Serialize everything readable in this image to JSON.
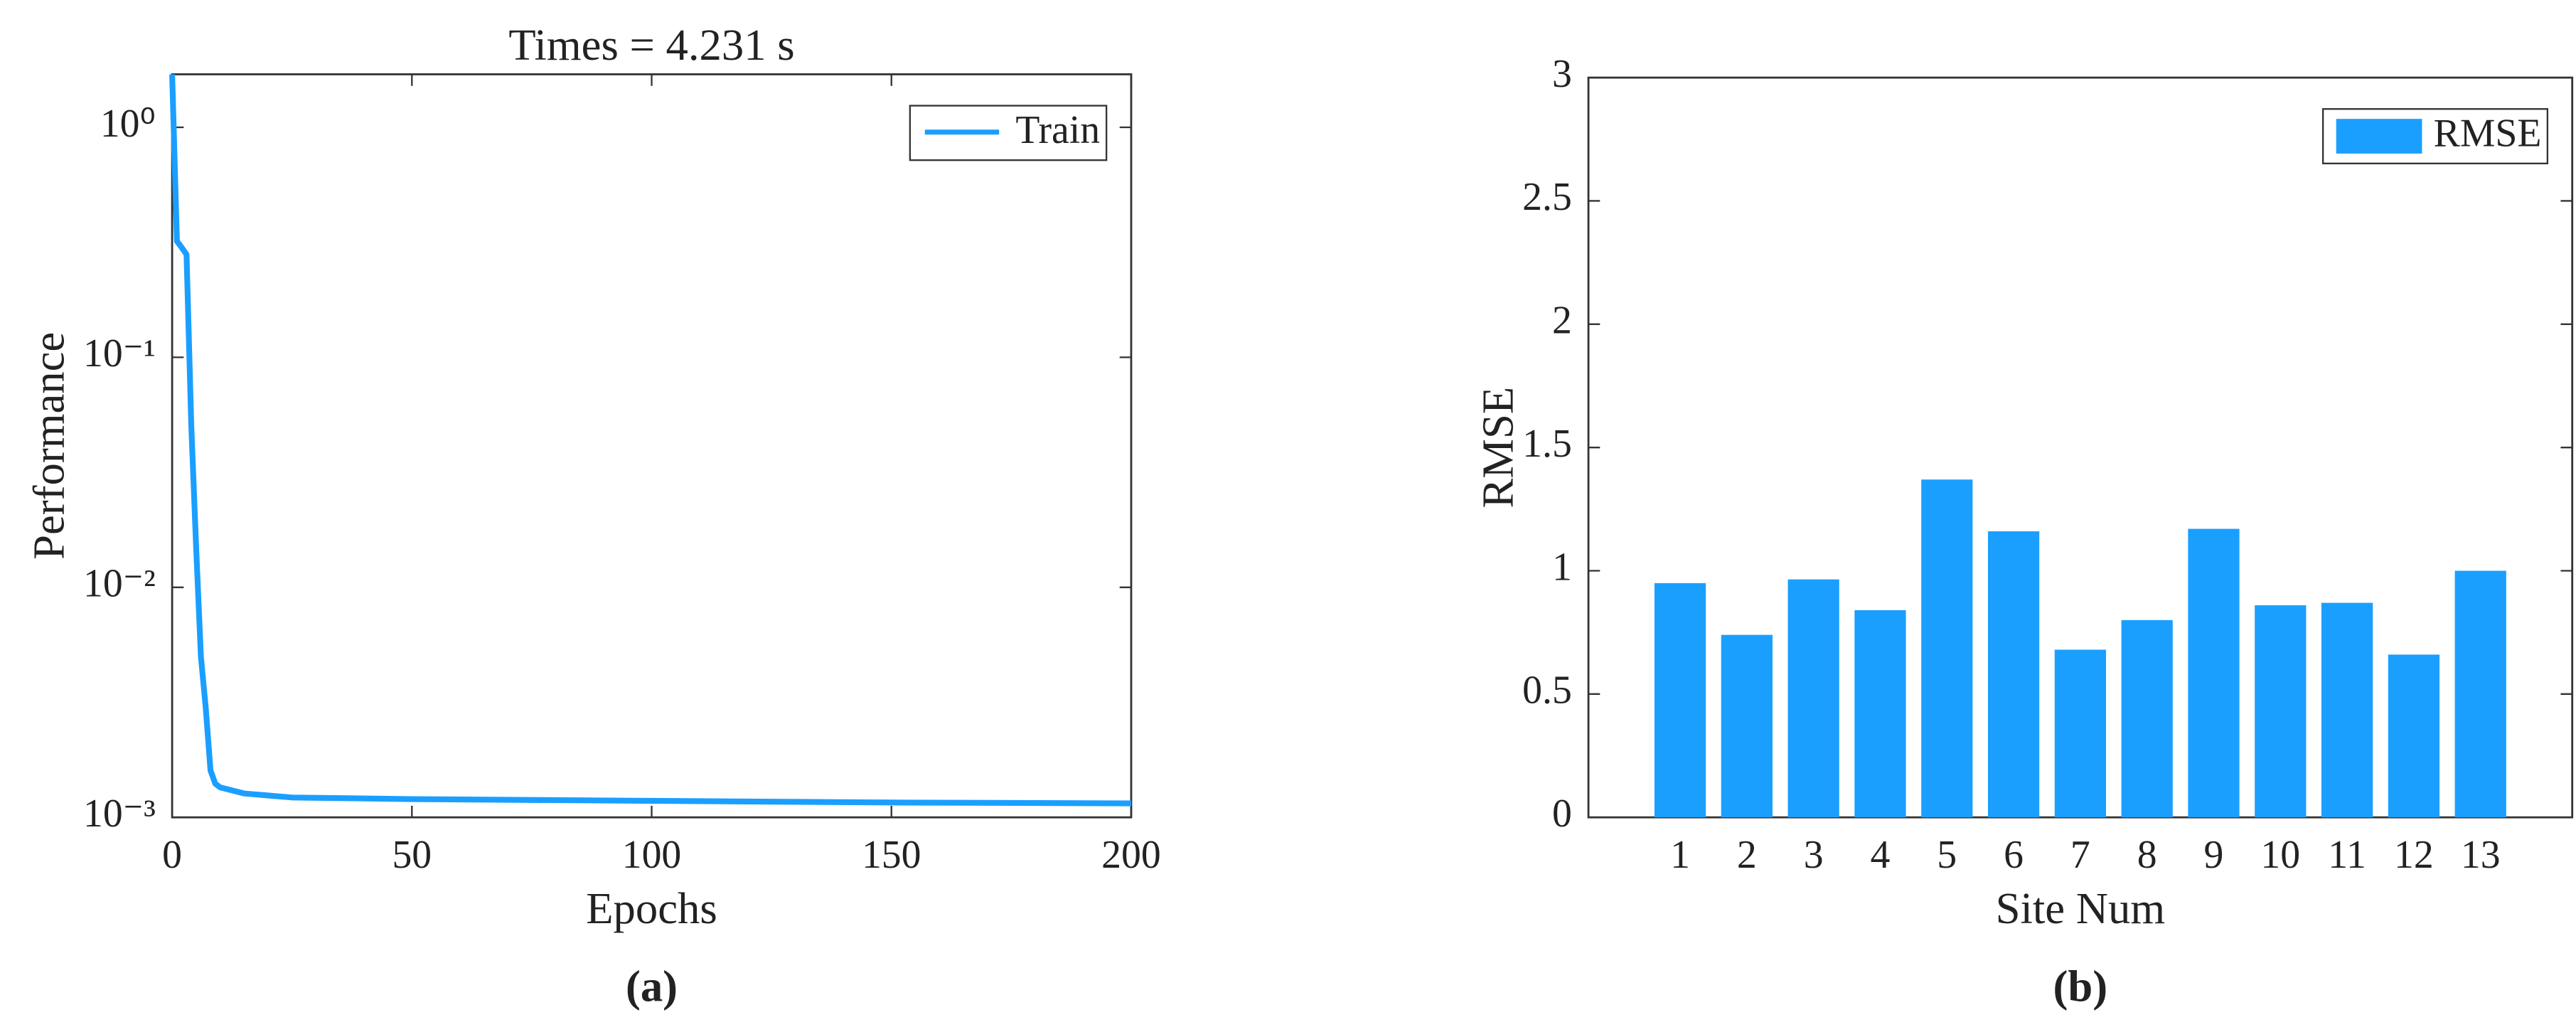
{
  "chart_data": [
    {
      "type": "line",
      "title": "Times = 4.231 s",
      "xlabel": "Epochs",
      "ylabel": "Performance",
      "caption": "(a)",
      "yscale": "log",
      "legend": "upper right",
      "grid": false,
      "x": [
        0,
        1,
        2,
        3,
        4,
        5,
        6,
        7,
        8,
        9,
        10,
        15,
        25,
        50,
        100,
        150,
        200
      ],
      "series": [
        {
          "name": "Train",
          "color": "#1a9fff",
          "values": [
            1.7,
            0.32,
            0.3,
            0.28,
            0.05,
            0.015,
            0.005,
            0.003,
            0.0016,
            0.0014,
            0.00135,
            0.00127,
            0.00122,
            0.0012,
            0.00118,
            0.00116,
            0.00115
          ]
        }
      ],
      "xlim": [
        0,
        200
      ],
      "xticks": [
        0,
        50,
        100,
        150,
        200
      ],
      "ylim": [
        0.001,
        1.7
      ],
      "yticks": [
        {
          "value": 0.001,
          "label": "10⁻³"
        },
        {
          "value": 0.01,
          "label": "10⁻²"
        },
        {
          "value": 0.1,
          "label": "10⁻¹"
        },
        {
          "value": 1,
          "label": "10⁰"
        }
      ]
    },
    {
      "type": "bar",
      "xlabel": "Site Num",
      "ylabel": "RMSE",
      "caption": "(b)",
      "legend": "upper right",
      "grid": false,
      "categories": [
        "1",
        "2",
        "3",
        "4",
        "5",
        "6",
        "7",
        "8",
        "9",
        "10",
        "11",
        "12",
        "13"
      ],
      "series": [
        {
          "name": "RMSE",
          "color": "#1a9fff",
          "values": [
            0.95,
            0.74,
            0.965,
            0.84,
            1.37,
            1.16,
            0.68,
            0.8,
            1.17,
            0.86,
            0.87,
            0.66,
            1.0
          ]
        }
      ],
      "ylim": [
        0,
        3
      ],
      "yticks": [
        0,
        0.5,
        1,
        1.5,
        2,
        2.5,
        3
      ]
    }
  ]
}
